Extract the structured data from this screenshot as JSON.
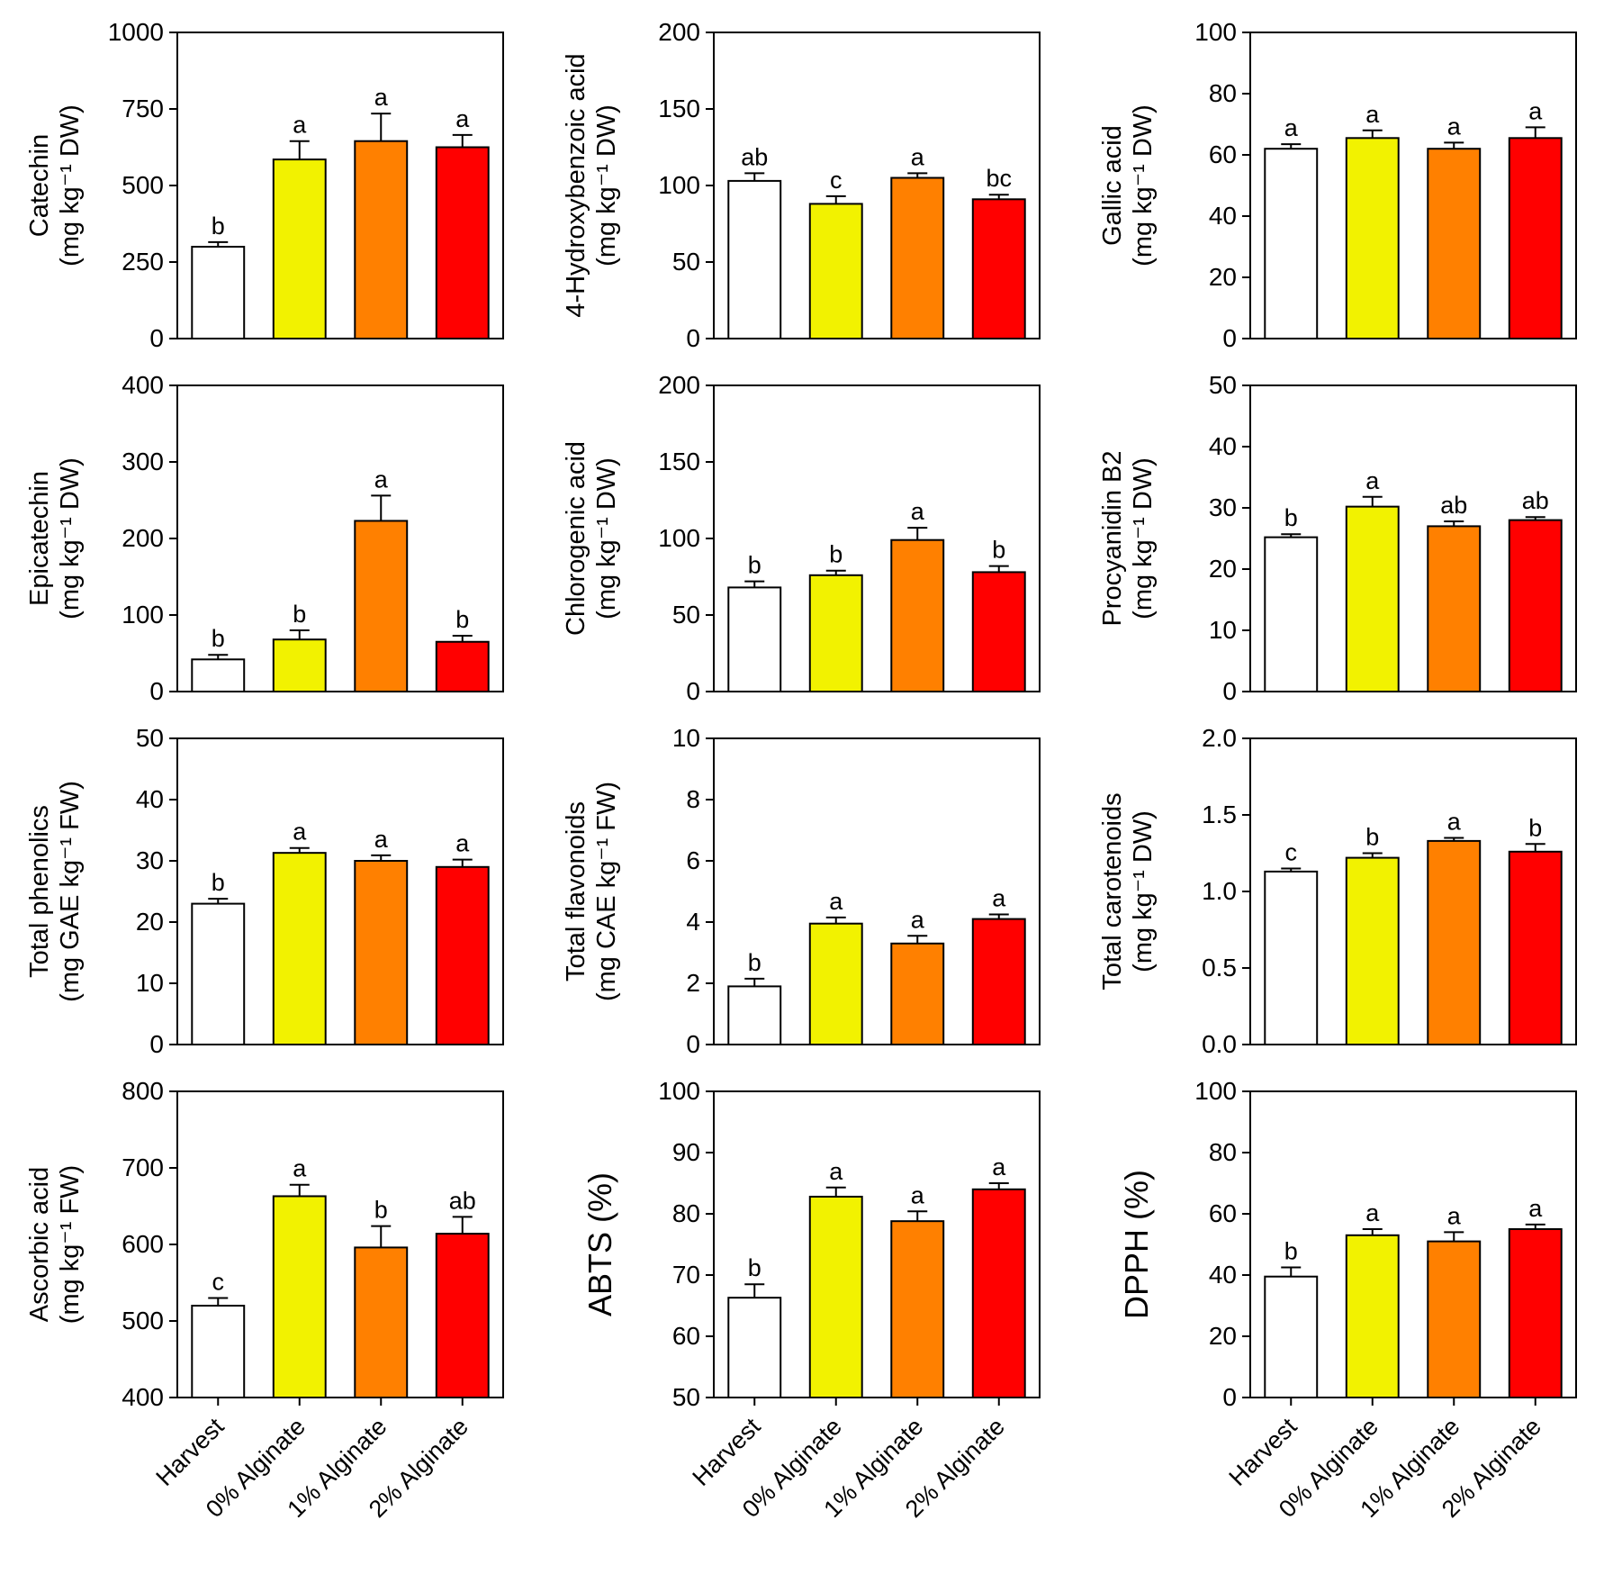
{
  "figure": {
    "background": "#FFFFFF",
    "categories": [
      "Harvest",
      "0% Alginate",
      "1% Alginate",
      "2% Alginate"
    ],
    "bar_colors": [
      "#FFFFFF",
      "#F2F200",
      "#FF8000",
      "#FF0000"
    ],
    "bar_edge_color": "#000000",
    "error_bar_color": "#000000",
    "legend": "none",
    "grid_lines": "off"
  },
  "chart_data": [
    {
      "type": "bar",
      "ylabel_lines": [
        "Catechin",
        "(mg kg⁻¹ DW)"
      ],
      "ylim": [
        0,
        1000
      ],
      "yticks": [
        0,
        250,
        500,
        750,
        1000
      ],
      "ytick_labels": [
        "0",
        "250",
        "500",
        "750",
        "1000"
      ],
      "values": [
        300,
        585,
        645,
        625
      ],
      "errors": [
        15,
        60,
        90,
        40
      ],
      "letters": [
        "b",
        "a",
        "a",
        "a"
      ],
      "show_x_labels": false
    },
    {
      "type": "bar",
      "ylabel_lines": [
        "4-Hydroxybenzoic acid",
        "(mg kg⁻¹ DW)"
      ],
      "ylim": [
        0,
        200
      ],
      "yticks": [
        0,
        50,
        100,
        150,
        200
      ],
      "ytick_labels": [
        "0",
        "50",
        "100",
        "150",
        "200"
      ],
      "values": [
        103,
        88,
        105,
        91
      ],
      "errors": [
        5,
        5,
        3,
        3
      ],
      "letters": [
        "ab",
        "c",
        "a",
        "bc"
      ],
      "show_x_labels": false
    },
    {
      "type": "bar",
      "ylabel_lines": [
        "Gallic acid",
        "(mg kg⁻¹ DW)"
      ],
      "ylim": [
        0,
        100
      ],
      "yticks": [
        0,
        20,
        40,
        60,
        80,
        100
      ],
      "ytick_labels": [
        "0",
        "20",
        "40",
        "60",
        "80",
        "100"
      ],
      "values": [
        62,
        65.5,
        62,
        65.5
      ],
      "errors": [
        1.5,
        2.5,
        2,
        3.5
      ],
      "letters": [
        "a",
        "a",
        "a",
        "a"
      ],
      "show_x_labels": false
    },
    {
      "type": "bar",
      "ylabel_lines": [
        "Epicatechin",
        "(mg kg⁻¹ DW)"
      ],
      "ylim": [
        0,
        400
      ],
      "yticks": [
        0,
        100,
        200,
        300,
        400
      ],
      "ytick_labels": [
        "0",
        "100",
        "200",
        "300",
        "400"
      ],
      "values": [
        42,
        68,
        223,
        65
      ],
      "errors": [
        6,
        12,
        33,
        8
      ],
      "letters": [
        "b",
        "b",
        "a",
        "b"
      ],
      "show_x_labels": false
    },
    {
      "type": "bar",
      "ylabel_lines": [
        "Chlorogenic acid",
        "(mg kg⁻¹ DW)"
      ],
      "ylim": [
        0,
        200
      ],
      "yticks": [
        0,
        50,
        100,
        150,
        200
      ],
      "ytick_labels": [
        "0",
        "50",
        "100",
        "150",
        "200"
      ],
      "values": [
        68,
        76,
        99,
        78
      ],
      "errors": [
        4,
        3,
        8,
        4
      ],
      "letters": [
        "b",
        "b",
        "a",
        "b"
      ],
      "show_x_labels": false
    },
    {
      "type": "bar",
      "ylabel_lines": [
        "Procyanidin B2",
        "(mg kg⁻¹ DW)"
      ],
      "ylim": [
        0,
        50
      ],
      "yticks": [
        0,
        10,
        20,
        30,
        40,
        50
      ],
      "ytick_labels": [
        "0",
        "10",
        "20",
        "30",
        "40",
        "50"
      ],
      "values": [
        25.2,
        30.2,
        27,
        28
      ],
      "errors": [
        0.5,
        1.6,
        0.8,
        0.5
      ],
      "letters": [
        "b",
        "a",
        "ab",
        "ab"
      ],
      "show_x_labels": false
    },
    {
      "type": "bar",
      "ylabel_lines": [
        "Total phenolics",
        "(mg GAE kg⁻¹ FW)"
      ],
      "ylim": [
        0,
        50
      ],
      "yticks": [
        0,
        10,
        20,
        30,
        40,
        50
      ],
      "ytick_labels": [
        "0",
        "10",
        "20",
        "30",
        "40",
        "50"
      ],
      "values": [
        23,
        31.3,
        30,
        29
      ],
      "errors": [
        0.8,
        0.8,
        0.9,
        1.2
      ],
      "letters": [
        "b",
        "a",
        "a",
        "a"
      ],
      "show_x_labels": false
    },
    {
      "type": "bar",
      "ylabel_lines": [
        "Total flavonoids",
        "(mg CAE kg⁻¹ FW)"
      ],
      "ylim": [
        0,
        10
      ],
      "yticks": [
        0,
        2,
        4,
        6,
        8,
        10
      ],
      "ytick_labels": [
        "0",
        "2",
        "4",
        "6",
        "8",
        "10"
      ],
      "values": [
        1.9,
        3.95,
        3.3,
        4.1
      ],
      "errors": [
        0.25,
        0.2,
        0.25,
        0.15
      ],
      "letters": [
        "b",
        "a",
        "a",
        "a"
      ],
      "show_x_labels": false
    },
    {
      "type": "bar",
      "ylabel_lines": [
        "Total carotenoids",
        "(mg kg⁻¹ DW)"
      ],
      "ylim": [
        0,
        2
      ],
      "yticks": [
        0,
        0.5,
        1,
        1.5,
        2
      ],
      "ytick_labels": [
        "0.0",
        "0.5",
        "1.0",
        "1.5",
        "2.0"
      ],
      "values": [
        1.13,
        1.22,
        1.33,
        1.26
      ],
      "errors": [
        0.02,
        0.03,
        0.02,
        0.05
      ],
      "letters": [
        "c",
        "b",
        "a",
        "b"
      ],
      "show_x_labels": false
    },
    {
      "type": "bar",
      "ylabel_lines": [
        "Ascorbic acid",
        "(mg kg⁻¹ FW)"
      ],
      "ylim": [
        400,
        800
      ],
      "yticks": [
        400,
        500,
        600,
        700,
        800
      ],
      "ytick_labels": [
        "400",
        "500",
        "600",
        "700",
        "800"
      ],
      "values": [
        520,
        663,
        596,
        614
      ],
      "errors": [
        10,
        15,
        28,
        22
      ],
      "letters": [
        "c",
        "a",
        "b",
        "ab"
      ],
      "show_x_labels": true
    },
    {
      "type": "bar",
      "ylabel_lines": [
        "ABTS (%)"
      ],
      "ylim": [
        50,
        100
      ],
      "yticks": [
        50,
        60,
        70,
        80,
        90,
        100
      ],
      "ytick_labels": [
        "50",
        "60",
        "70",
        "80",
        "90",
        "100"
      ],
      "values": [
        66.3,
        82.8,
        78.8,
        84
      ],
      "errors": [
        2.2,
        1.5,
        1.6,
        1
      ],
      "letters": [
        "b",
        "a",
        "a",
        "a"
      ],
      "show_x_labels": true
    },
    {
      "type": "bar",
      "ylabel_lines": [
        "DPPH (%)"
      ],
      "ylim": [
        0,
        100
      ],
      "yticks": [
        0,
        20,
        40,
        60,
        80,
        100
      ],
      "ytick_labels": [
        "0",
        "20",
        "40",
        "60",
        "80",
        "100"
      ],
      "values": [
        39.5,
        53,
        51,
        55
      ],
      "errors": [
        3,
        2,
        3,
        1.5
      ],
      "letters": [
        "b",
        "a",
        "a",
        "a"
      ],
      "show_x_labels": true
    }
  ]
}
